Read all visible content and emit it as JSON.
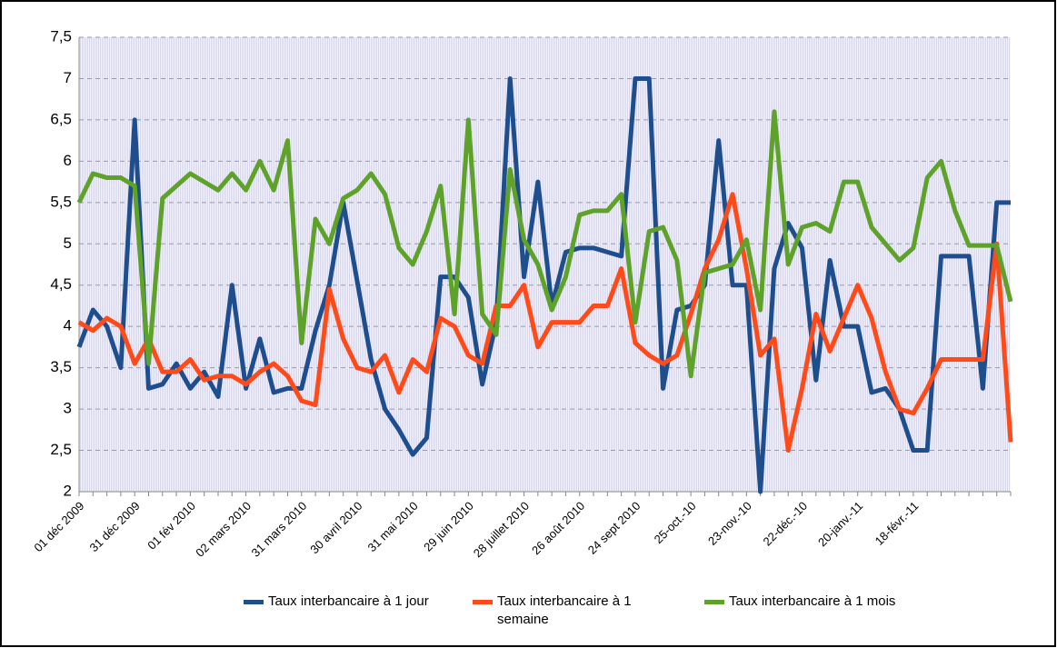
{
  "chart_data": {
    "type": "line",
    "categories": [
      "01 déc 2009",
      null,
      null,
      null,
      "31 déc 2009",
      null,
      null,
      null,
      "01 fév 2010",
      null,
      null,
      null,
      "02 mars 2010",
      null,
      null,
      null,
      "31 mars 2010",
      null,
      null,
      null,
      "30 avril 2010",
      null,
      null,
      null,
      "31 mai 2010",
      null,
      null,
      null,
      "29 juin 2010",
      null,
      null,
      null,
      "28 juillet 2010",
      null,
      null,
      null,
      "26 août 2010",
      null,
      null,
      null,
      "24 sept 2010",
      null,
      null,
      null,
      "25-oct.-10",
      null,
      null,
      null,
      "23-nov.-10",
      null,
      null,
      null,
      "22-déc.-10",
      null,
      null,
      null,
      "20-janv.-11",
      null,
      null,
      null,
      "18-févr.-11",
      null,
      null,
      null,
      null,
      null,
      null,
      null
    ],
    "series": [
      {
        "name": "Taux interbancaire à 1 jour",
        "color": "#1f4e8c",
        "values": [
          3.75,
          4.2,
          4.0,
          3.5,
          6.5,
          3.25,
          3.3,
          3.55,
          3.25,
          3.45,
          3.15,
          4.5,
          3.25,
          3.85,
          3.2,
          3.25,
          3.25,
          3.95,
          4.5,
          5.5,
          4.55,
          3.6,
          3.0,
          2.75,
          2.45,
          2.65,
          4.6,
          4.6,
          4.35,
          3.3,
          4.05,
          7.0,
          4.6,
          5.75,
          4.25,
          4.9,
          4.95,
          4.95,
          4.9,
          4.85,
          7.0,
          7.0,
          3.25,
          4.2,
          4.25,
          4.5,
          6.25,
          4.5,
          4.5,
          2.0,
          4.7,
          5.25,
          4.95,
          3.35,
          4.8,
          4.0,
          4.0,
          3.2,
          3.25,
          3.0,
          2.5,
          2.5,
          4.85,
          4.85,
          4.85,
          3.25,
          5.5,
          5.5
        ]
      },
      {
        "name": "Taux interbancaire à 1 semaine",
        "color": "#ff4a1a",
        "values": [
          4.05,
          3.95,
          4.1,
          4.0,
          3.55,
          3.85,
          3.45,
          3.45,
          3.6,
          3.35,
          3.4,
          3.4,
          3.3,
          3.45,
          3.55,
          3.4,
          3.1,
          3.05,
          4.45,
          3.85,
          3.5,
          3.45,
          3.65,
          3.2,
          3.6,
          3.45,
          4.1,
          4.0,
          3.65,
          3.55,
          4.25,
          4.25,
          4.5,
          3.75,
          4.05,
          4.05,
          4.05,
          4.25,
          4.25,
          4.7,
          3.8,
          3.65,
          3.55,
          3.65,
          4.15,
          4.7,
          5.05,
          5.6,
          4.7,
          3.65,
          3.85,
          2.5,
          3.25,
          4.15,
          3.7,
          4.1,
          4.5,
          4.1,
          3.45,
          3.0,
          2.95,
          3.25,
          3.6,
          3.6,
          3.6,
          3.6,
          5.0,
          2.6
        ]
      },
      {
        "name": "Taux interbancaire à 1 mois",
        "color": "#5ea22a",
        "values": [
          5.5,
          5.85,
          5.8,
          5.8,
          5.7,
          3.55,
          5.55,
          5.7,
          5.85,
          5.75,
          5.65,
          5.85,
          5.65,
          6.0,
          5.65,
          6.25,
          3.8,
          5.3,
          5.0,
          5.55,
          5.65,
          5.85,
          5.6,
          4.95,
          4.75,
          5.15,
          5.7,
          4.15,
          6.5,
          4.15,
          3.9,
          5.9,
          5.05,
          4.75,
          4.2,
          4.6,
          5.35,
          5.4,
          5.4,
          5.6,
          4.05,
          5.15,
          5.2,
          4.8,
          3.4,
          4.65,
          4.7,
          4.75,
          5.05,
          4.2,
          6.6,
          4.75,
          5.2,
          5.25,
          5.15,
          5.75,
          5.75,
          5.2,
          5.0,
          4.8,
          4.95,
          5.8,
          6.0,
          5.4,
          4.98,
          4.98,
          4.98,
          4.3
        ]
      }
    ],
    "ylim": [
      2,
      7.5
    ],
    "yticks": [
      2,
      {
        "value": 2.5,
        "label": "2,5"
      },
      3,
      {
        "value": 3.5,
        "label": "3,5"
      },
      4,
      {
        "value": 4.5,
        "label": "4,5"
      },
      5,
      {
        "value": 5.5,
        "label": "5,5"
      },
      6,
      {
        "value": 6.5,
        "label": "6,5"
      },
      7,
      {
        "value": 7.5,
        "label": "7,5"
      }
    ],
    "grid": true
  }
}
